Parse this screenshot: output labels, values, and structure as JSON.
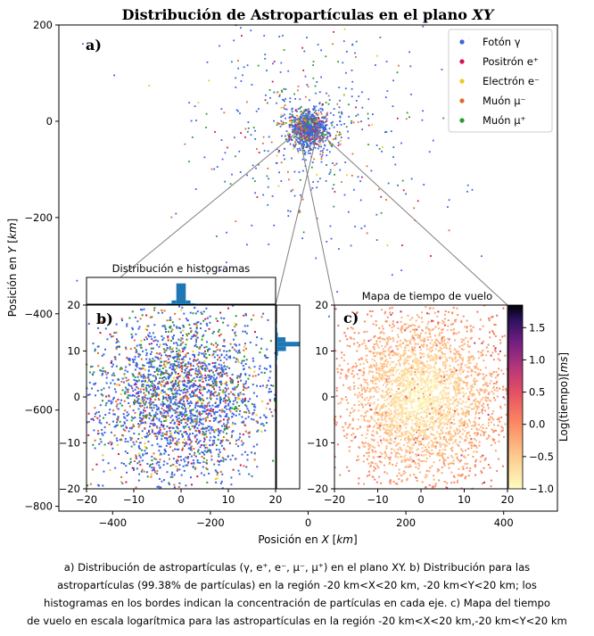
{
  "chart_data": [
    {
      "panel": "main",
      "type": "scatter",
      "title": "Distribución de Astropartículas en el plano XY",
      "panel_label": "a)",
      "xlabel": "Posición en X [km]",
      "ylabel": "Posición en Y [km]",
      "xlim": [
        -510,
        510
      ],
      "ylim": [
        -810,
        200
      ],
      "xticks": [
        -400,
        -200,
        0,
        200,
        400
      ],
      "yticks": [
        200,
        0,
        -200,
        -400,
        -600,
        -800
      ],
      "grid": false,
      "legend_position": "top-right",
      "series": [
        {
          "name": "Fotón γ",
          "color": "#3b64e0",
          "weight": 0.62
        },
        {
          "name": "Positrón e⁺",
          "color": "#d6124e",
          "weight": 0.06
        },
        {
          "name": "Electrón e⁻",
          "color": "#f2c81d",
          "weight": 0.04
        },
        {
          "name": "Muón μ⁻",
          "color": "#e4692a",
          "weight": 0.14
        },
        {
          "name": "Muón μ⁺",
          "color": "#2a9a2a",
          "weight": 0.14
        }
      ],
      "distribution": {
        "center": [
          0,
          -15
        ],
        "core_sigma_km": 20,
        "halo_sigma_km": 90
      }
    },
    {
      "panel": "inset-b",
      "type": "scatter",
      "title": "Distribución e histogramas",
      "panel_label": "b)",
      "xlim": [
        -20,
        20
      ],
      "ylim": [
        -20,
        20
      ],
      "xticks": [
        -20,
        -10,
        0,
        10,
        20
      ],
      "yticks": [
        20,
        10,
        0,
        -10,
        -20
      ],
      "fraction_in_region": "99.38%",
      "hist_color": "#1f77b4"
    },
    {
      "panel": "inset-c",
      "type": "heatmap",
      "title": "Mapa de tiempo de vuelo",
      "panel_label": "c)",
      "xlim": [
        -20,
        20
      ],
      "ylim": [
        -20,
        20
      ],
      "xticks": [
        -20,
        -10,
        0,
        10,
        20
      ],
      "yticks": [
        20,
        10,
        0,
        -10,
        -20
      ],
      "colorbar_label": "Log(tiempo)[ms]",
      "colorbar_ticks": [
        1.5,
        1.0,
        0.5,
        0.0,
        -0.5,
        -1.0
      ],
      "colorbar_range": [
        -1.0,
        1.85
      ],
      "colormap": "magma_r"
    }
  ],
  "caption": [
    "a) Distribución de astropartículas (γ, e⁺, e⁻, μ⁻, μ⁺) en el plano XY. b) Distribución para las",
    "astropartículas (99.38% de partículas) en la región -20 km<X<20 km, -20 km<Y<20 km; los",
    "histogramas en los bordes indican la concentración de partículas en cada eje. c) Mapa del tiempo",
    "de vuelo en escala logarítmica para las astropartículas en la región -20 km<X<20 km,-20 km<Y<20 km"
  ]
}
